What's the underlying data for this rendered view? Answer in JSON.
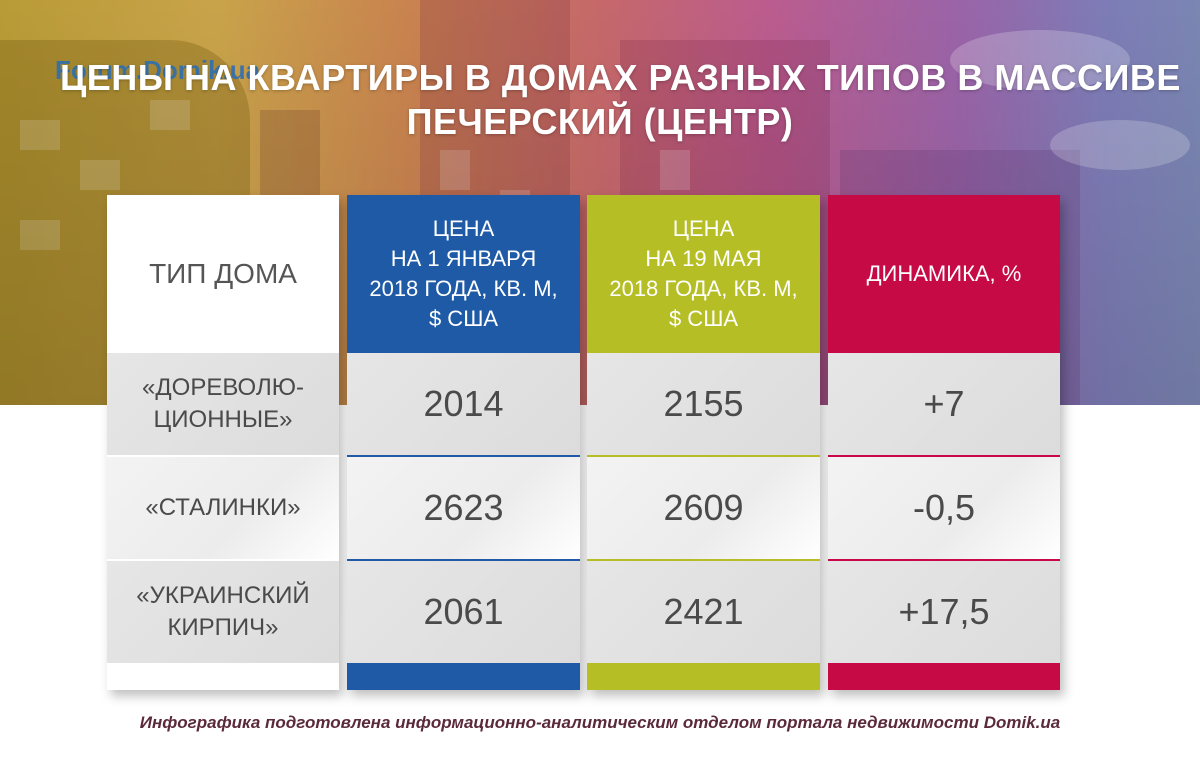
{
  "watermark": "Forum.Domik.ua",
  "title": {
    "line1": "ЦЕНЫ НА КВАРТИРЫ В ДОМАХ РАЗНЫХ ТИПОВ В МАССИВЕ",
    "line2": "ПЕЧЕРСКИЙ (ЦЕНТР)"
  },
  "table": {
    "headers": {
      "type": "ТИП ДОМА",
      "jan": [
        "ЦЕНА",
        "НА 1 ЯНВАРЯ",
        "2018 ГОДА, КВ. М,",
        "$ США"
      ],
      "may": [
        "ЦЕНА",
        "НА 19 МАЯ",
        "2018 ГОДА, КВ. М,",
        "$ США"
      ],
      "dynamics": "ДИНАМИКА, %"
    },
    "rows": [
      {
        "type": [
          "«ДОРЕВОЛЮ-",
          "ЦИОННЫЕ»"
        ],
        "jan": "2014",
        "may": "2155",
        "dynamics": "+7"
      },
      {
        "type": [
          "«СТАЛИНКИ»"
        ],
        "jan": "2623",
        "may": "2609",
        "dynamics": "-0,5"
      },
      {
        "type": [
          "«УКРАИНСКИЙ",
          "КИРПИЧ»"
        ],
        "jan": "2061",
        "may": "2421",
        "dynamics": "+17,5"
      }
    ]
  },
  "colors": {
    "jan_column": "#1e5aa6",
    "may_column": "#b5be25",
    "dynamics_column": "#c50a45"
  },
  "footer": "Инфографика подготовлена информационно-аналитическим отделом портала недвижимости Domik.ua"
}
